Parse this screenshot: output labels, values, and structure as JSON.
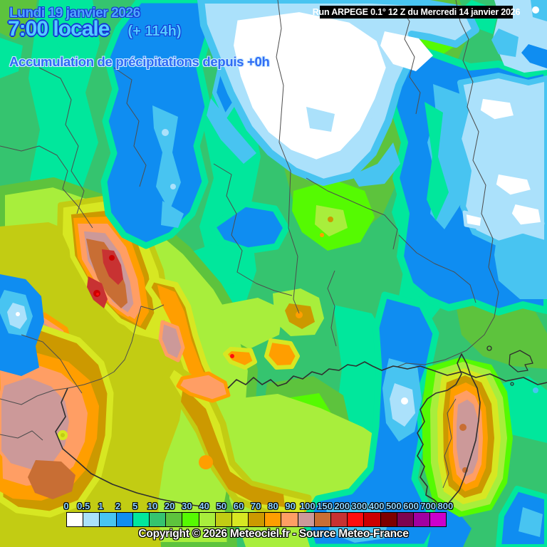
{
  "header": {
    "date_line": "Lundi 19 janvier 2026",
    "time_line": "7:00 locale",
    "offset_label": "(+ 114h)",
    "subtitle": "Accumulation de précipitations depuis +0h"
  },
  "run_info": {
    "text": "Run ARPEGE 0.1° 12 Z du Mercredi 14 janvier 2026"
  },
  "legend": {
    "title": "precipitation-mm-scale",
    "values": [
      "0",
      "0.5",
      "1",
      "2",
      "5",
      "10",
      "20",
      "30",
      "40",
      "50",
      "60",
      "70",
      "80",
      "90",
      "100",
      "150",
      "200",
      "300",
      "400",
      "500",
      "600",
      "700",
      "800"
    ],
    "colors": [
      "#FFFFFF",
      "#ABE1FB",
      "#48C4F1",
      "#0F8DF1",
      "#01E79C",
      "#35C46F",
      "#5DC33D",
      "#55FA02",
      "#A8EE3C",
      "#C2CC13",
      "#D7E722",
      "#CC9900",
      "#FF9E00",
      "#FF9E64",
      "#CC9999",
      "#C86E34",
      "#C83232",
      "#FF0D0D",
      "#CC0000",
      "#7D0000",
      "#7D0350",
      "#A100A1",
      "#CC00CC"
    ]
  },
  "copyright": "Copyright © 2026 Meteociel.fr - Source Meteo-France",
  "map_colors": {
    "base_green": "#35C46F",
    "light_rain_teal": "#01E79C",
    "no_rain_white": "#FFFFFF",
    "sea_blue": "#0F8DF1",
    "heavy_rain_core": "#CC9999"
  }
}
